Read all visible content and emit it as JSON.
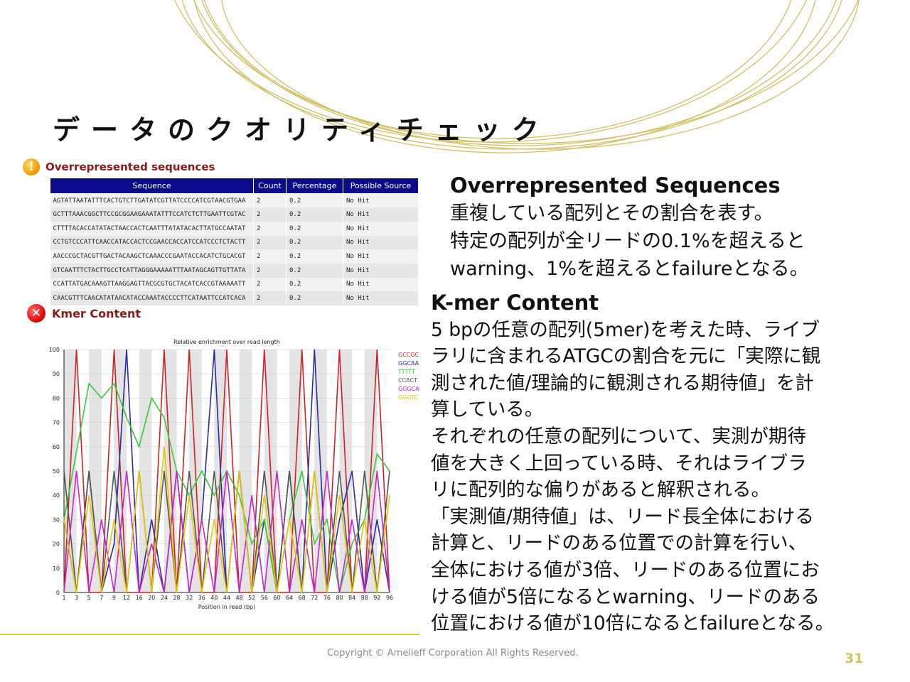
{
  "slide": {
    "title": "データのクオリティチェック",
    "copyright": "Copyright © Amelieff Corporation All Rights Reserved.",
    "page_number": "31",
    "accent_color": "#c8b44a"
  },
  "overrepresented": {
    "icon": "warning-icon",
    "title": "Overrepresented sequences",
    "columns": [
      "Sequence",
      "Count",
      "Percentage",
      "Possible Source"
    ],
    "rows": [
      [
        "AGTATTAATATTTCACTGTCTTGATATCGTTATCCCCATCGTAACGTGAA",
        "2",
        "0.2",
        "No Hit"
      ],
      [
        "GCTTTAAACGGCTTCCGCGGAAGAAATATTTCCATCTCTTGAATTCGTAC",
        "2",
        "0.2",
        "No Hit"
      ],
      [
        "CTTTTACACCATATACTAACCACTCAATTTATATACACTTATGCCAATAT",
        "2",
        "0.2",
        "No Hit"
      ],
      [
        "CCTGTCCCATTCAACCATACCACTCCGAACCACCATCCATCCCTCTACTT",
        "2",
        "0.2",
        "No Hit"
      ],
      [
        "AACCCGCTACGTTGACTACAAGCTCAAACCCGAATACCACATCTGCACGT",
        "2",
        "0.2",
        "No Hit"
      ],
      [
        "GTCAATTTCTACTTGCCTCATTAGGGAAAAATTTAATAGCAGTTGTTATA",
        "2",
        "0.2",
        "No Hit"
      ],
      [
        "CCATTATGACAAAGTTAAGGAGTTACGCGTGCTACATCACCGTAAAAATT",
        "2",
        "0.2",
        "No Hit"
      ],
      [
        "CAACGTTTCAACATATAACATACCAAATACCCCTTCATAATTCCATCACA",
        "2",
        "0.2",
        "No Hit"
      ]
    ]
  },
  "kmer": {
    "icon": "fail-icon",
    "title": "Kmer Content"
  },
  "chart_data": {
    "type": "line",
    "title": "Relative enrichment over read length",
    "xlabel": "Position in read (bp)",
    "ylabel": "",
    "ylim": [
      0,
      100
    ],
    "yticks": [
      0,
      10,
      20,
      30,
      40,
      50,
      60,
      70,
      80,
      90,
      100
    ],
    "x": [
      1,
      3,
      5,
      7,
      9,
      12,
      16,
      20,
      24,
      28,
      32,
      36,
      40,
      44,
      48,
      52,
      56,
      60,
      64,
      68,
      72,
      76,
      80,
      84,
      88,
      92,
      96
    ],
    "legend_position": "right",
    "grid": true,
    "series": [
      {
        "name": "GCCGC",
        "color": "#cc2222",
        "values": [
          0,
          100,
          0,
          0,
          100,
          0,
          0,
          0,
          100,
          0,
          100,
          0,
          0,
          100,
          0,
          0,
          100,
          0,
          0,
          100,
          0,
          0,
          100,
          0,
          0,
          100,
          0
        ]
      },
      {
        "name": "GGCAA",
        "color": "#2a2aa8",
        "values": [
          30,
          0,
          50,
          0,
          20,
          100,
          0,
          30,
          0,
          50,
          0,
          30,
          100,
          0,
          50,
          0,
          30,
          0,
          50,
          0,
          100,
          0,
          30,
          50,
          0,
          30,
          0
        ]
      },
      {
        "name": "TTTTT",
        "color": "#33cc33",
        "values": [
          30,
          58,
          86,
          80,
          86,
          72,
          60,
          80,
          72,
          50,
          40,
          50,
          40,
          50,
          40,
          20,
          30,
          0,
          30,
          50,
          20,
          30,
          0,
          20,
          30,
          57,
          50
        ]
      },
      {
        "name": "CCACT",
        "color": "#555555",
        "values": [
          50,
          0,
          50,
          0,
          50,
          0,
          50,
          0,
          50,
          0,
          50,
          0,
          50,
          0,
          50,
          0,
          50,
          0,
          50,
          0,
          50,
          0,
          50,
          0,
          50,
          0,
          50
        ]
      },
      {
        "name": "GGGCA",
        "color": "#cc22cc",
        "values": [
          0,
          50,
          0,
          30,
          0,
          50,
          0,
          20,
          0,
          50,
          0,
          30,
          0,
          50,
          0,
          40,
          0,
          50,
          0,
          30,
          0,
          50,
          0,
          30,
          0,
          50,
          0
        ]
      },
      {
        "name": "GGGTC",
        "color": "#e6c400",
        "values": [
          30,
          0,
          40,
          0,
          30,
          0,
          50,
          0,
          60,
          0,
          40,
          0,
          30,
          0,
          50,
          0,
          40,
          0,
          30,
          0,
          50,
          0,
          40,
          0,
          30,
          0,
          40
        ]
      }
    ]
  },
  "over_desc": {
    "heading": "Overrepresented Sequences",
    "lines": [
      "重複している配列とその割合を表す。",
      "特定の配列が全リードの0.1%を超えると",
      "warning、1%を超えるとfailureとなる。"
    ]
  },
  "kmer_desc": {
    "heading": "K-mer Content",
    "lines": [
      "5 bpの任意の配列(5mer)を考えた時、ライブ",
      "ラリに含まれるATGCの割合を元に「実際に観",
      "測された値/理論的に観測される期待値」を計",
      "算している。",
      "それぞれの任意の配列について、実測が期待",
      "値を大きく上回っている時、それはライブラ",
      "リに配列的な偏りがあると解釈される。",
      "「実測値/期待値」は、リード長全体における",
      "計算と、リードのある位置での計算を行い、",
      "全体における値が3倍、リードのある位置にお",
      "ける値が5倍になるとwarning、リードのある",
      "位置における値が10倍になるとfailureとなる。"
    ]
  }
}
